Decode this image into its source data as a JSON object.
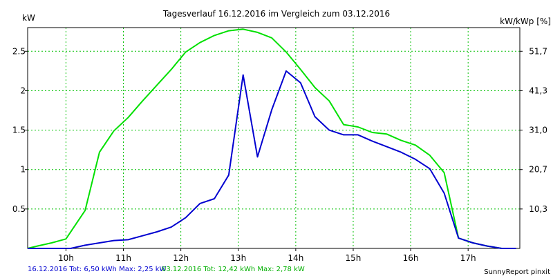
{
  "chart_data": {
    "type": "line",
    "title": "Tagesverlauf 16.12.2016 im Vergleich zum 03.12.2016",
    "ylabel_left": "kW",
    "ylabel_right": "kW/kWp [%]",
    "xlim": [
      9.3333,
      17.9
    ],
    "ylim": [
      0,
      2.8
    ],
    "grid": true,
    "x_ticks": [
      {
        "v": 10,
        "label": "10h"
      },
      {
        "v": 11,
        "label": "11h"
      },
      {
        "v": 12,
        "label": "12h"
      },
      {
        "v": 13,
        "label": "13h"
      },
      {
        "v": 14,
        "label": "14h"
      },
      {
        "v": 15,
        "label": "15h"
      },
      {
        "v": 16,
        "label": "16h"
      },
      {
        "v": 17,
        "label": "17h"
      }
    ],
    "y_ticks": [
      {
        "v": 0.5,
        "label": "0.5"
      },
      {
        "v": 1,
        "label": "1"
      },
      {
        "v": 1.5,
        "label": "1.5"
      },
      {
        "v": 2,
        "label": "2"
      },
      {
        "v": 2.5,
        "label": "2.5"
      }
    ],
    "y2_ticks": [
      {
        "v": 0.5,
        "label": "10,3"
      },
      {
        "v": 1,
        "label": "20,7"
      },
      {
        "v": 1.5,
        "label": "31,0"
      },
      {
        "v": 2,
        "label": "41,3"
      },
      {
        "v": 2.5,
        "label": "51,7"
      }
    ],
    "series": [
      {
        "label": "03.12.2016 Tot: 12,42 kWh Max: 2,78 kW",
        "color": "#00e000",
        "x": [
          9.3333,
          9.5,
          9.75,
          10.0,
          10.3333,
          10.5833,
          10.8333,
          11.0833,
          11.3333,
          11.5833,
          11.8333,
          12.0833,
          12.3333,
          12.5833,
          12.8333,
          13.0833,
          13.3333,
          13.5833,
          13.8333,
          14.0833,
          14.3333,
          14.5833,
          14.8333,
          15.0833,
          15.3333,
          15.5833,
          15.8333,
          16.0833,
          16.3333,
          16.5833,
          16.8333,
          17.0833,
          17.3333,
          17.5833,
          17.8333
        ],
        "y": [
          0.0,
          0.03,
          0.07,
          0.12,
          0.48,
          1.22,
          1.49,
          1.66,
          1.87,
          2.07,
          2.27,
          2.49,
          2.61,
          2.7,
          2.76,
          2.78,
          2.74,
          2.67,
          2.49,
          2.27,
          2.04,
          1.87,
          1.57,
          1.54,
          1.47,
          1.45,
          1.37,
          1.31,
          1.18,
          0.96,
          0.13,
          0.07,
          0.03,
          0.0,
          0.0
        ]
      },
      {
        "label": "16.12.2016 Tot: 6,50 kWh Max: 2,25 kW",
        "color": "#0000d0",
        "x": [
          9.3333,
          9.75,
          10.0833,
          10.3333,
          10.5833,
          10.8333,
          11.0833,
          11.3333,
          11.5833,
          11.8333,
          12.0833,
          12.3333,
          12.5833,
          12.8333,
          13.0833,
          13.3333,
          13.5833,
          13.8333,
          14.0833,
          14.3333,
          14.5833,
          14.8333,
          15.0833,
          15.3333,
          15.5833,
          15.8333,
          16.0833,
          16.3333,
          16.5833,
          16.8333,
          17.0833,
          17.3333,
          17.5833,
          17.8333
        ],
        "y": [
          0.0,
          0.0,
          0.0,
          0.04,
          0.07,
          0.1,
          0.11,
          0.16,
          0.21,
          0.27,
          0.39,
          0.57,
          0.63,
          0.93,
          2.2,
          1.16,
          1.76,
          2.25,
          2.1,
          1.67,
          1.5,
          1.44,
          1.44,
          1.36,
          1.29,
          1.22,
          1.13,
          1.01,
          0.7,
          0.13,
          0.07,
          0.03,
          0.0,
          0.0
        ]
      }
    ]
  },
  "footer": {
    "series_blue_label": "16.12.2016 Tot: 6,50 kWh Max: 2,25 kW",
    "series_green_label": "03.12.2016 Tot: 12,42 kWh Max: 2,78 kW",
    "credit": "SunnyReport pinxit"
  }
}
